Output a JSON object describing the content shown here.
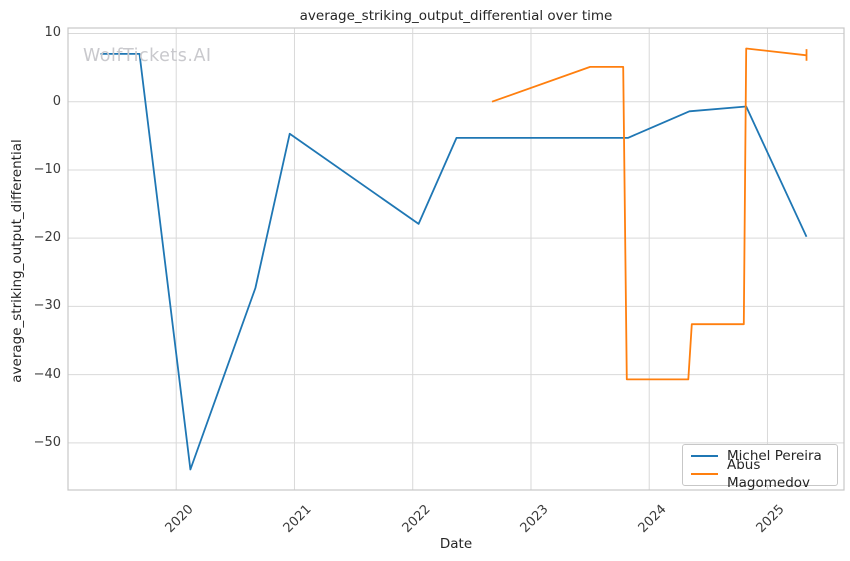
{
  "figure": {
    "watermark": "WolfTickets.AI"
  },
  "colors": {
    "grid": "#d9d9d9",
    "spine": "#c7c7c7",
    "title_text": "#262626",
    "tick_text": "#3b3b3b",
    "watermark": "#c9c9cd",
    "background": "#ffffff",
    "series_blue": "#1f77b4",
    "series_orange": "#ff7f0e"
  },
  "chart_data": {
    "type": "line",
    "title": "average_striking_output_differential over time",
    "xlabel": "Date",
    "ylabel": "average_striking_output_differential",
    "grid": true,
    "legend_position": "lower right",
    "xlim": [
      2019.085,
      2025.647
    ],
    "ylim": [
      -56.9,
      10.8
    ],
    "xticks": [
      {
        "v": 2020,
        "label": "2020"
      },
      {
        "v": 2021,
        "label": "2021"
      },
      {
        "v": 2022,
        "label": "2022"
      },
      {
        "v": 2023,
        "label": "2023"
      },
      {
        "v": 2024,
        "label": "2024"
      },
      {
        "v": 2025,
        "label": "2025"
      }
    ],
    "yticks": [
      {
        "v": 10,
        "label": "10"
      },
      {
        "v": 0,
        "label": "0"
      },
      {
        "v": -10,
        "label": "−10"
      },
      {
        "v": -20,
        "label": "−20"
      },
      {
        "v": -30,
        "label": "−30"
      },
      {
        "v": -40,
        "label": "−40"
      },
      {
        "v": -50,
        "label": "−50"
      }
    ],
    "series": [
      {
        "name": "Michel Pereira",
        "color": "#1f77b4",
        "points": [
          [
            2019.36,
            7.0
          ],
          [
            2019.69,
            7.0
          ],
          [
            2020.12,
            -53.9
          ],
          [
            2020.67,
            -27.3
          ],
          [
            2020.96,
            -4.7
          ],
          [
            2022.05,
            -17.9
          ],
          [
            2022.37,
            -5.3
          ],
          [
            2023.82,
            -5.3
          ],
          [
            2024.34,
            -1.4
          ],
          [
            2024.82,
            -0.7
          ],
          [
            2025.33,
            -19.8
          ]
        ]
      },
      {
        "name": "Abus Magomedov",
        "color": "#ff7f0e",
        "points": [
          [
            2022.67,
            0.0
          ],
          [
            2023.5,
            5.1
          ],
          [
            2023.78,
            5.1
          ],
          [
            2023.81,
            -40.7
          ],
          [
            2024.33,
            -40.7
          ],
          [
            2024.36,
            -32.6
          ],
          [
            2024.8,
            -32.6
          ],
          [
            2024.82,
            7.8
          ],
          [
            2025.33,
            6.8
          ]
        ],
        "end_tick": {
          "x": 2025.33,
          "y_top": 7.7,
          "y_bottom": 6.0
        }
      }
    ]
  }
}
